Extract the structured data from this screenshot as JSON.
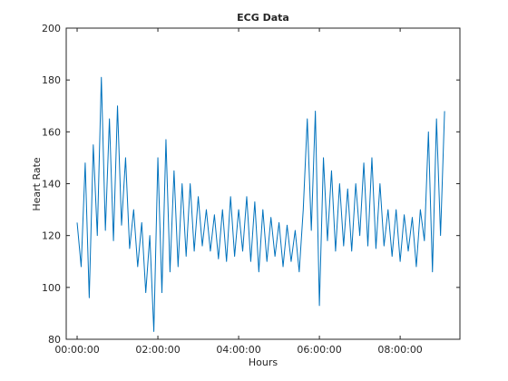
{
  "chart_data": {
    "type": "line",
    "title": "ECG Data",
    "x_label": "Hours",
    "y_label": "Heart Rate",
    "xlim": [
      -0.27,
      9.48
    ],
    "xticks": [
      {
        "value": 0,
        "label": "00:00:00"
      },
      {
        "value": 2,
        "label": "02:00:00"
      },
      {
        "value": 4,
        "label": "04:00:00"
      },
      {
        "value": 6,
        "label": "06:00:00"
      },
      {
        "value": 8,
        "label": "08:00:00"
      }
    ],
    "ylim": [
      80,
      200
    ],
    "yticks": [
      80,
      100,
      120,
      140,
      160,
      180,
      200
    ],
    "grid": false,
    "x": [
      0,
      0.1,
      0.2,
      0.3,
      0.4,
      0.5,
      0.6,
      0.7,
      0.8,
      0.9,
      1,
      1.1,
      1.2,
      1.3,
      1.4,
      1.5,
      1.6,
      1.7,
      1.8,
      1.9,
      2,
      2.1,
      2.2,
      2.3,
      2.4,
      2.5,
      2.6,
      2.7,
      2.8,
      2.9,
      3,
      3.1,
      3.2,
      3.3,
      3.4,
      3.5,
      3.6,
      3.7,
      3.8,
      3.9,
      4,
      4.1,
      4.2,
      4.3,
      4.4,
      4.5,
      4.6,
      4.7,
      4.8,
      4.9,
      5,
      5.1,
      5.2,
      5.3,
      5.4,
      5.5,
      5.6,
      5.7,
      5.8,
      5.9,
      6,
      6.1,
      6.2,
      6.3,
      6.4,
      6.5,
      6.6,
      6.7,
      6.8,
      6.9,
      7,
      7.1,
      7.2,
      7.3,
      7.4,
      7.5,
      7.6,
      7.7,
      7.8,
      7.9,
      8,
      8.1,
      8.2,
      8.3,
      8.4,
      8.5,
      8.6,
      8.7,
      8.8,
      8.9,
      9,
      9.1
    ],
    "series": [
      {
        "color": "#0072bd",
        "values": [
          125,
          108,
          148,
          96,
          155,
          120,
          181,
          122,
          165,
          118,
          170,
          124,
          150,
          115,
          130,
          108,
          125,
          98,
          120,
          83,
          150,
          98,
          157,
          106,
          145,
          108,
          140,
          112,
          140,
          114,
          135,
          116,
          130,
          114,
          128,
          111,
          130,
          110,
          135,
          112,
          130,
          114,
          135,
          110,
          133,
          106,
          130,
          110,
          127,
          112,
          125,
          108,
          124,
          110,
          122,
          106,
          130,
          165,
          122,
          168,
          93,
          150,
          118,
          145,
          114,
          140,
          116,
          138,
          114,
          140,
          120,
          148,
          116,
          150,
          115,
          140,
          116,
          130,
          112,
          130,
          110,
          128,
          114,
          127,
          108,
          130,
          118,
          160,
          106,
          165,
          120,
          168
        ]
      }
    ]
  }
}
